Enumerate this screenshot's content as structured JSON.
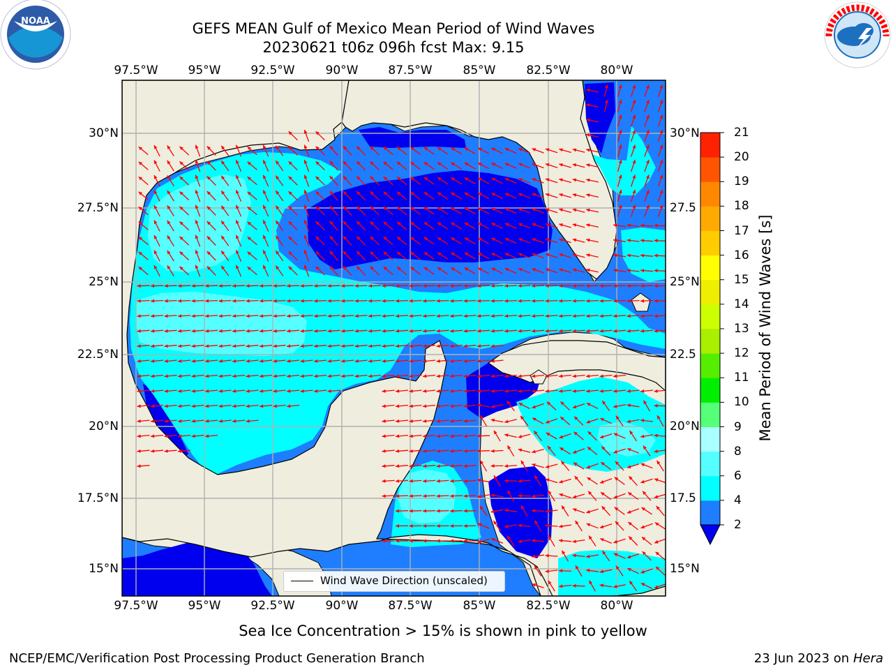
{
  "title_line1": "GEFS MEAN Gulf of Mexico Mean Period of Wind Waves",
  "title_line2": "20230621 t06z 096h fcst   Max: 9.15",
  "logos": {
    "left": "NOAA",
    "right": "NATIONAL WEATHER SERVICE"
  },
  "map": {
    "lon_labels": [
      "97.5°W",
      "95°W",
      "92.5°W",
      "90°W",
      "87.5°W",
      "85°W",
      "82.5°W",
      "80°W"
    ],
    "lat_labels_left": [
      "30°N",
      "27.5°N",
      "25°N",
      "22.5°N",
      "20°N",
      "17.5°N",
      "15°N"
    ],
    "lat_labels_right": [
      "30°N",
      "27.5",
      "25°N",
      "22.5",
      "20°N",
      "17.5",
      "15°N"
    ],
    "legend_text": "Wind Wave Direction (unscaled)",
    "colors": {
      "land": "#efedde",
      "coast": "#000000",
      "grid": "#b0b0b0",
      "arrow": "#ff0000"
    }
  },
  "colorbar": {
    "label": "Mean Period of Wind Waves [s]",
    "ticks": [
      "2",
      "4",
      "6",
      "8",
      "9",
      "10",
      "11",
      "12",
      "13",
      "14",
      "15",
      "16",
      "17",
      "18",
      "19",
      "20",
      "21"
    ],
    "colors": [
      "#1e7eff",
      "#00ffff",
      "#55ffff",
      "#aaffff",
      "#55ff77",
      "#00ee00",
      "#55ee00",
      "#aaee00",
      "#ccff00",
      "#eeee00",
      "#ffff00",
      "#ffcc00",
      "#ffaa00",
      "#ff8800",
      "#ff5500",
      "#ff2200"
    ],
    "under_color": "#0000ee"
  },
  "caption": "Sea Ice Concentration > 15% is shown in pink to yellow",
  "footer_left": "NCEP/EMC/Verification Post Processing Product Generation Branch",
  "footer_date": "23 Jun 2023 on",
  "footer_machine": "Hera"
}
